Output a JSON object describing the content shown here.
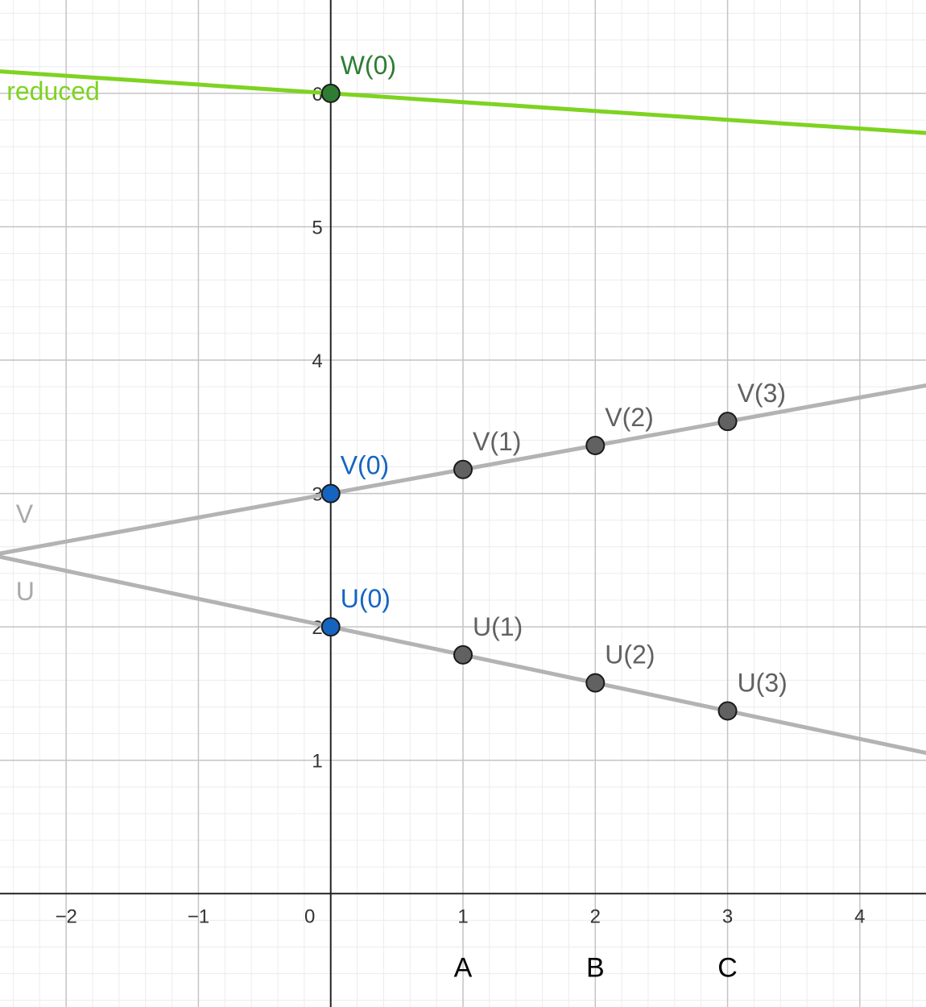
{
  "chart_data": {
    "type": "line",
    "xlim": [
      -2.5,
      4.5
    ],
    "ylim": [
      -0.85,
      6.7
    ],
    "grid": true,
    "x_ticks": [
      {
        "value": -2,
        "label": "−2"
      },
      {
        "value": -1,
        "label": "−1"
      },
      {
        "value": 0,
        "label": "0"
      },
      {
        "value": 1,
        "label": "1"
      },
      {
        "value": 2,
        "label": "2"
      },
      {
        "value": 3,
        "label": "3"
      },
      {
        "value": 4,
        "label": "4"
      }
    ],
    "y_ticks": [
      {
        "value": 1,
        "label": "1"
      },
      {
        "value": 2,
        "label": "2"
      },
      {
        "value": 3,
        "label": "3"
      },
      {
        "value": 4,
        "label": "4"
      },
      {
        "value": 5,
        "label": "5"
      },
      {
        "value": 6,
        "label": "6"
      }
    ],
    "below_axis_labels": [
      {
        "x": 1,
        "text": "A"
      },
      {
        "x": 2,
        "text": "B"
      },
      {
        "x": 3,
        "text": "C"
      }
    ],
    "lines": [
      {
        "name": "reduced",
        "intercept": 6,
        "slope": -0.066,
        "color": "#7ed321",
        "label_x": -2.45,
        "label_y": 5.95
      },
      {
        "name": "V",
        "intercept": 3,
        "slope": 0.18,
        "color": "#b3b3b3",
        "label_x": -2.38,
        "label_y": 2.78
      },
      {
        "name": "U",
        "intercept": 2,
        "slope": -0.21,
        "color": "#b3b3b3",
        "label_x": -2.38,
        "label_y": 2.2
      }
    ],
    "points": [
      {
        "label": "W(0)",
        "x": 0,
        "y": 6,
        "fill": "#2e7d32",
        "text_color": "#2e7d32"
      },
      {
        "label": "V(0)",
        "x": 0,
        "y": 3,
        "fill": "#1565c0",
        "text_color": "#1565c0"
      },
      {
        "label": "U(0)",
        "x": 0,
        "y": 2,
        "fill": "#1565c0",
        "text_color": "#1565c0"
      },
      {
        "label": "V(1)",
        "x": 1,
        "y": 3.18,
        "fill": "#616161",
        "text_color": "#616161"
      },
      {
        "label": "V(2)",
        "x": 2,
        "y": 3.36,
        "fill": "#616161",
        "text_color": "#616161"
      },
      {
        "label": "V(3)",
        "x": 3,
        "y": 3.54,
        "fill": "#616161",
        "text_color": "#616161"
      },
      {
        "label": "U(1)",
        "x": 1,
        "y": 1.79,
        "fill": "#616161",
        "text_color": "#616161"
      },
      {
        "label": "U(2)",
        "x": 2,
        "y": 1.58,
        "fill": "#616161",
        "text_color": "#616161"
      },
      {
        "label": "U(3)",
        "x": 3,
        "y": 1.37,
        "fill": "#616161",
        "text_color": "#616161"
      }
    ]
  }
}
